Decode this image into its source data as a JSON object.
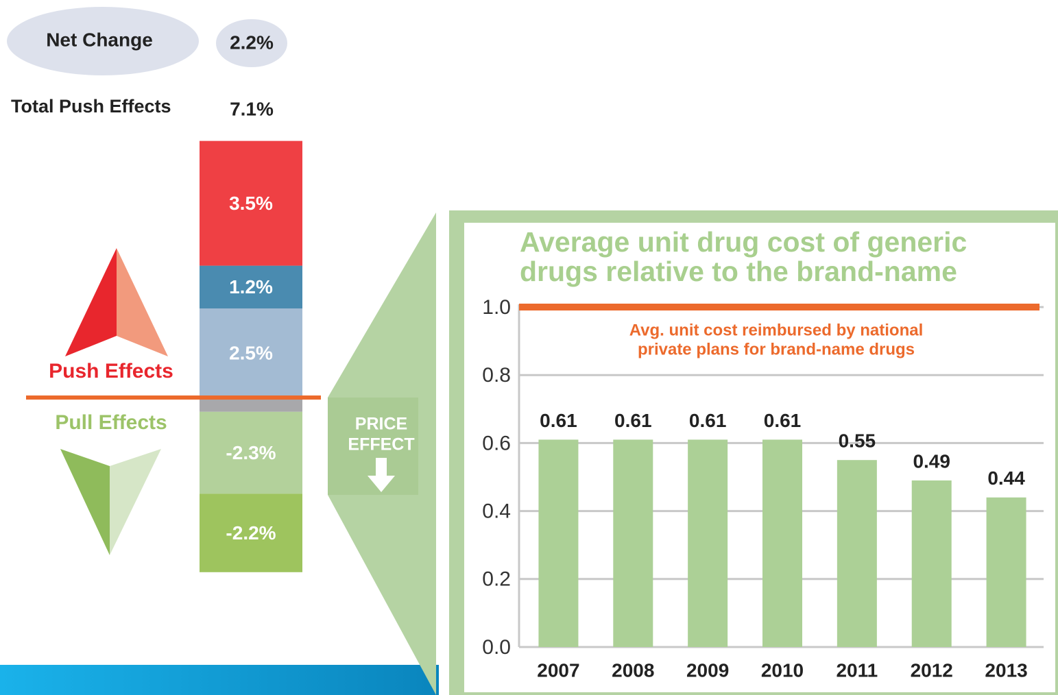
{
  "chart_data": [
    {
      "type": "stacked_bar",
      "net_change": {
        "label": "Net Change",
        "value": 2.2,
        "value_label": "2.2%"
      },
      "total_push": {
        "label": "Total Push Effects",
        "value": 7.1,
        "value_label": "7.1%"
      },
      "push_label": "Push Effects",
      "pull_label": "Pull Effects",
      "series": [
        {
          "color": "#a3bbd3",
          "values": [
            2.5
          ],
          "value_labels": [
            "2.5%"
          ]
        },
        {
          "color": "#4a8bb0",
          "values": [
            1.2
          ],
          "value_labels": [
            "1.2%"
          ]
        },
        {
          "color": "#ef4044",
          "values": [
            3.5
          ],
          "value_labels": [
            "3.5%"
          ]
        },
        {
          "color": "#a8a8ab",
          "values": [
            -0.4
          ]
        },
        {
          "color": "#b3d19b",
          "values": [
            -2.3
          ],
          "value_labels": [
            "-2.3%"
          ]
        },
        {
          "color": "#9ec45e",
          "values": [
            -2.2
          ],
          "value_labels": [
            "-2.2%"
          ]
        }
      ],
      "axis_color": "#ec6a2c"
    },
    {
      "type": "bar",
      "title": [
        "Average unit  drug cost of generic",
        "drugs relative to the brand-name"
      ],
      "categories": [
        "2007",
        "2008",
        "2009",
        "2010",
        "2011",
        "2012",
        "2013"
      ],
      "values": [
        0.61,
        0.61,
        0.61,
        0.61,
        0.55,
        0.49,
        0.44
      ],
      "color": "#acd096",
      "ylim": [
        0,
        1
      ],
      "yticks": [
        {
          "value": 0,
          "label": "0.0"
        },
        0.2,
        0.4,
        0.6,
        0.8,
        {
          "value": 1,
          "label": "1.0"
        }
      ],
      "grid": true,
      "reference_line": {
        "value": 1,
        "color": "#ec6a2c",
        "label": [
          "Avg. unit cost reimbursed by national",
          "private plans for brand-name drugs"
        ]
      },
      "callout": [
        "PRICE",
        "EFFECT"
      ]
    }
  ]
}
